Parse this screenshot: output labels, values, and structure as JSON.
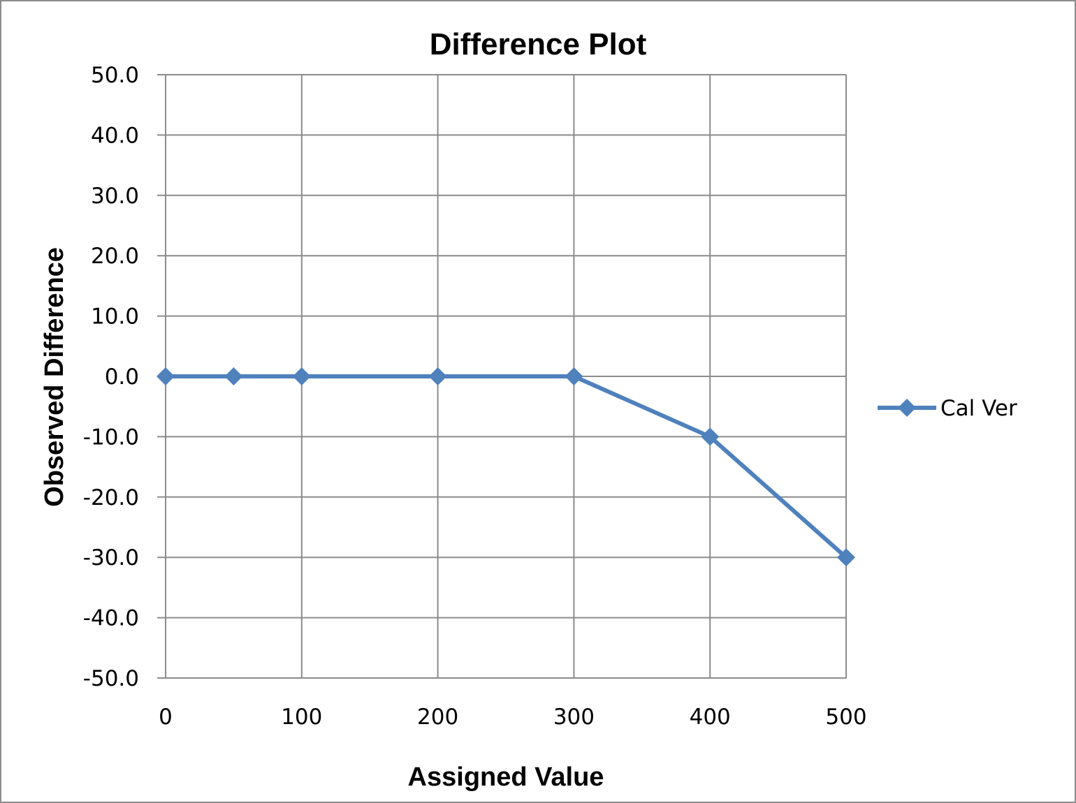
{
  "chart_data": {
    "type": "line",
    "title": "Difference Plot",
    "xlabel": "Assigned Value",
    "ylabel": "Observed Difference",
    "xlim": [
      0,
      500
    ],
    "ylim": [
      -50,
      50
    ],
    "x_ticks": [
      0,
      100,
      200,
      300,
      400,
      500
    ],
    "x_tick_labels": [
      "0",
      "100",
      "200",
      "300",
      "400",
      "500"
    ],
    "y_ticks": [
      50,
      40,
      30,
      20,
      10,
      0,
      -10,
      -20,
      -30,
      -40,
      -50
    ],
    "y_tick_labels": [
      "50.0",
      "40.0",
      "30.0",
      "20.0",
      "10.0",
      "0.0",
      "-10.0",
      "-20.0",
      "-30.0",
      "-40.0",
      "-50.0"
    ],
    "grid": true,
    "legend_position": "right",
    "series": [
      {
        "name": "Cal Ver",
        "color": "#4f81bd",
        "marker": "diamond",
        "x": [
          0,
          50,
          100,
          200,
          300,
          400,
          500
        ],
        "y": [
          0,
          0,
          0,
          0,
          0,
          -10,
          -30
        ]
      }
    ]
  }
}
